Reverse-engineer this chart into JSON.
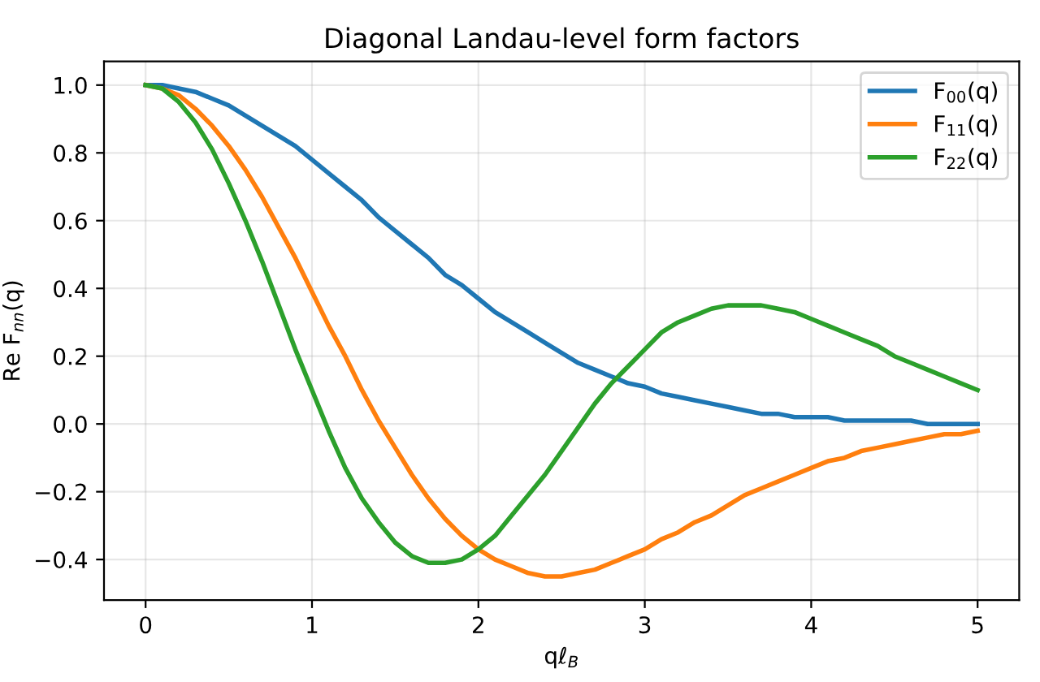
{
  "chart_data": {
    "type": "line",
    "title": "Diagonal Landau-level form factors",
    "xlabel": "qℓ$_{B}$",
    "ylabel": "Re F$_{nn}$(q)",
    "x": [
      0,
      0.1,
      0.2,
      0.3,
      0.4,
      0.5,
      0.6,
      0.7,
      0.8,
      0.9,
      1.0,
      1.1,
      1.2,
      1.3,
      1.4,
      1.5,
      1.6,
      1.7,
      1.8,
      1.9,
      2.0,
      2.1,
      2.2,
      2.3,
      2.4,
      2.5,
      2.6,
      2.7,
      2.8,
      2.9,
      3.0,
      3.1,
      3.2,
      3.3,
      3.4,
      3.5,
      3.6,
      3.7,
      3.8,
      3.9,
      4.0,
      4.1,
      4.2,
      4.3,
      4.4,
      4.5,
      4.6,
      4.7,
      4.8,
      4.9,
      5.0
    ],
    "series": [
      {
        "name": "F$_{00}$(q)",
        "color": "#1f77b4",
        "values": [
          1.0,
          1.0,
          0.99,
          0.98,
          0.96,
          0.94,
          0.91,
          0.88,
          0.85,
          0.82,
          0.78,
          0.74,
          0.7,
          0.66,
          0.61,
          0.57,
          0.53,
          0.49,
          0.44,
          0.41,
          0.37,
          0.33,
          0.3,
          0.27,
          0.24,
          0.21,
          0.18,
          0.16,
          0.14,
          0.12,
          0.11,
          0.09,
          0.08,
          0.07,
          0.06,
          0.05,
          0.04,
          0.03,
          0.03,
          0.02,
          0.02,
          0.02,
          0.01,
          0.01,
          0.01,
          0.01,
          0.01,
          0.0,
          0.0,
          0.0,
          0.0
        ]
      },
      {
        "name": "F$_{11}$(q)",
        "color": "#ff7f0e",
        "values": [
          1.0,
          0.99,
          0.97,
          0.93,
          0.88,
          0.82,
          0.75,
          0.67,
          0.58,
          0.49,
          0.39,
          0.29,
          0.2,
          0.1,
          0.01,
          -0.07,
          -0.15,
          -0.22,
          -0.28,
          -0.33,
          -0.37,
          -0.4,
          -0.42,
          -0.44,
          -0.45,
          -0.45,
          -0.44,
          -0.43,
          -0.41,
          -0.39,
          -0.37,
          -0.34,
          -0.32,
          -0.29,
          -0.27,
          -0.24,
          -0.21,
          -0.19,
          -0.17,
          -0.15,
          -0.13,
          -0.11,
          -0.1,
          -0.08,
          -0.07,
          -0.06,
          -0.05,
          -0.04,
          -0.03,
          -0.03,
          -0.02
        ]
      },
      {
        "name": "F$_{22}$(q)",
        "color": "#2ca02c",
        "values": [
          1.0,
          0.99,
          0.95,
          0.89,
          0.81,
          0.71,
          0.6,
          0.48,
          0.35,
          0.22,
          0.1,
          -0.02,
          -0.13,
          -0.22,
          -0.29,
          -0.35,
          -0.39,
          -0.41,
          -0.41,
          -0.4,
          -0.37,
          -0.33,
          -0.27,
          -0.21,
          -0.15,
          -0.08,
          -0.01,
          0.06,
          0.12,
          0.17,
          0.22,
          0.27,
          0.3,
          0.32,
          0.34,
          0.35,
          0.35,
          0.35,
          0.34,
          0.33,
          0.31,
          0.29,
          0.27,
          0.25,
          0.23,
          0.2,
          0.18,
          0.16,
          0.14,
          0.12,
          0.1
        ]
      }
    ],
    "xlim": [
      -0.25,
      5.25
    ],
    "ylim": [
      -0.52,
      1.07
    ],
    "xticks": [
      0,
      1,
      2,
      3,
      4,
      5
    ],
    "yticks": [
      {
        "value": -0.4,
        "label": "−0.4"
      },
      {
        "value": -0.2,
        "label": "−0.2"
      },
      {
        "value": 0.0,
        "label": "0.0"
      },
      {
        "value": 0.2,
        "label": "0.2"
      },
      {
        "value": 0.4,
        "label": "0.4"
      },
      {
        "value": 0.6,
        "label": "0.6"
      },
      {
        "value": 0.8,
        "label": "0.8"
      },
      {
        "value": 1.0,
        "label": "1.0"
      }
    ],
    "grid": true,
    "legend": "top right",
    "line_style": "solid",
    "marker": "none"
  }
}
